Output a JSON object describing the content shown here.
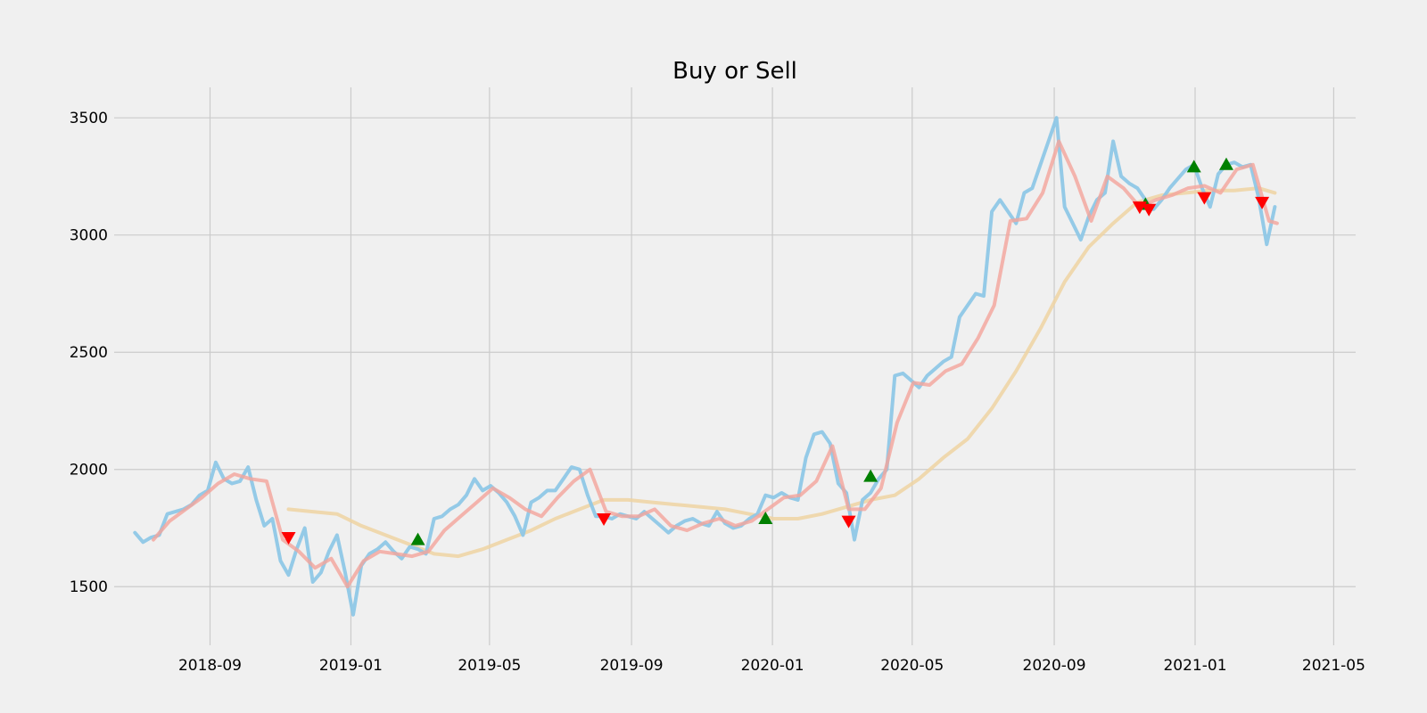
{
  "chart_data": {
    "type": "line",
    "title": "Buy or Sell",
    "xlabel": "",
    "ylabel": "",
    "x_axis_type": "date",
    "xlim": [
      "2018-06-10",
      "2021-05-20"
    ],
    "ylim": [
      1250,
      3630
    ],
    "grid": true,
    "legend": "none",
    "x_ticks": [
      "2018-09",
      "2019-01",
      "2019-05",
      "2019-09",
      "2020-01",
      "2020-05",
      "2020-09",
      "2021-01",
      "2021-05"
    ],
    "y_ticks": [
      1500,
      2000,
      2500,
      3000,
      3500
    ],
    "colors": {
      "background": "#f0f0f0",
      "grid": "#cbcbcb",
      "price": "#8ec7e6",
      "short_ma": "#f4a49b",
      "long_ma": "#efd4a2",
      "buy": "#008000",
      "sell": "#ff0000"
    },
    "series": [
      {
        "key": "price",
        "x": [
          "2018-06-28",
          "2018-07-05",
          "2018-07-12",
          "2018-07-19",
          "2018-07-26",
          "2018-08-02",
          "2018-08-09",
          "2018-08-16",
          "2018-08-23",
          "2018-08-30",
          "2018-09-06",
          "2018-09-13",
          "2018-09-20",
          "2018-09-27",
          "2018-10-04",
          "2018-10-11",
          "2018-10-18",
          "2018-10-25",
          "2018-11-01",
          "2018-11-08",
          "2018-11-15",
          "2018-11-22",
          "2018-11-29",
          "2018-12-06",
          "2018-12-13",
          "2018-12-20",
          "2018-12-27",
          "2019-01-03",
          "2019-01-10",
          "2019-01-17",
          "2019-01-24",
          "2019-01-31",
          "2019-02-07",
          "2019-02-14",
          "2019-02-21",
          "2019-02-28",
          "2019-03-07",
          "2019-03-14",
          "2019-03-21",
          "2019-03-28",
          "2019-04-04",
          "2019-04-11",
          "2019-04-18",
          "2019-04-25",
          "2019-05-02",
          "2019-05-09",
          "2019-05-16",
          "2019-05-23",
          "2019-05-30",
          "2019-06-06",
          "2019-06-13",
          "2019-06-20",
          "2019-06-27",
          "2019-07-04",
          "2019-07-11",
          "2019-07-18",
          "2019-07-25",
          "2019-08-01",
          "2019-08-08",
          "2019-08-15",
          "2019-08-22",
          "2019-08-29",
          "2019-09-05",
          "2019-09-12",
          "2019-09-19",
          "2019-09-26",
          "2019-10-03",
          "2019-10-10",
          "2019-10-17",
          "2019-10-24",
          "2019-10-31",
          "2019-11-07",
          "2019-11-14",
          "2019-11-21",
          "2019-11-28",
          "2019-12-05",
          "2019-12-12",
          "2019-12-19",
          "2019-12-26",
          "2020-01-02",
          "2020-01-09",
          "2020-01-16",
          "2020-01-23",
          "2020-01-30",
          "2020-02-06",
          "2020-02-13",
          "2020-02-20",
          "2020-02-27",
          "2020-03-05",
          "2020-03-12",
          "2020-03-19",
          "2020-03-26",
          "2020-04-02",
          "2020-04-09",
          "2020-04-16",
          "2020-04-23",
          "2020-04-30",
          "2020-05-07",
          "2020-05-14",
          "2020-05-21",
          "2020-05-28",
          "2020-06-04",
          "2020-06-11",
          "2020-06-18",
          "2020-06-25",
          "2020-07-02",
          "2020-07-09",
          "2020-07-16",
          "2020-07-23",
          "2020-07-30",
          "2020-08-06",
          "2020-08-13",
          "2020-08-20",
          "2020-08-27",
          "2020-09-03",
          "2020-09-10",
          "2020-09-17",
          "2020-09-24",
          "2020-10-01",
          "2020-10-08",
          "2020-10-15",
          "2020-10-22",
          "2020-10-29",
          "2020-11-05",
          "2020-11-12",
          "2020-11-19",
          "2020-11-26",
          "2020-12-03",
          "2020-12-10",
          "2020-12-17",
          "2020-12-24",
          "2020-12-31",
          "2021-01-07",
          "2021-01-14",
          "2021-01-21",
          "2021-01-28",
          "2021-02-04",
          "2021-02-11",
          "2021-02-18",
          "2021-02-25",
          "2021-03-04",
          "2021-03-11"
        ],
        "values": [
          1730,
          1690,
          1710,
          1720,
          1810,
          1820,
          1830,
          1850,
          1890,
          1910,
          2030,
          1960,
          1940,
          1950,
          2010,
          1870,
          1760,
          1790,
          1610,
          1550,
          1660,
          1750,
          1520,
          1560,
          1650,
          1720,
          1560,
          1380,
          1590,
          1640,
          1660,
          1690,
          1650,
          1620,
          1670,
          1660,
          1640,
          1790,
          1800,
          1830,
          1850,
          1890,
          1960,
          1910,
          1930,
          1900,
          1860,
          1800,
          1720,
          1860,
          1880,
          1910,
          1910,
          1960,
          2010,
          2000,
          1890,
          1800,
          1800,
          1790,
          1810,
          1800,
          1790,
          1820,
          1790,
          1760,
          1730,
          1760,
          1780,
          1790,
          1770,
          1760,
          1820,
          1770,
          1750,
          1760,
          1790,
          1810,
          1890,
          1880,
          1900,
          1880,
          1870,
          2050,
          2150,
          2160,
          2110,
          1940,
          1900,
          1700,
          1870,
          1900,
          1960,
          2000,
          2400,
          2410,
          2380,
          2350,
          2400,
          2430,
          2460,
          2480,
          2650,
          2700,
          2750,
          2740,
          3100,
          3150,
          3100,
          3050,
          3180,
          3200,
          3300,
          3400,
          3500,
          3120,
          3050,
          2980,
          3080,
          3150,
          3180,
          3400,
          3250,
          3220,
          3200,
          3150,
          3110,
          3150,
          3200,
          3240,
          3280,
          3300,
          3200,
          3120,
          3260,
          3300,
          3310,
          3290,
          3300,
          3160,
          2960,
          3120
        ]
      },
      {
        "key": "short_ma",
        "x": [
          "2018-07-14",
          "2018-07-28",
          "2018-08-11",
          "2018-08-25",
          "2018-09-08",
          "2018-09-22",
          "2018-10-06",
          "2018-10-20",
          "2018-11-03",
          "2018-11-17",
          "2018-12-01",
          "2018-12-15",
          "2018-12-29",
          "2019-01-12",
          "2019-01-26",
          "2019-02-09",
          "2019-02-23",
          "2019-03-09",
          "2019-03-23",
          "2019-04-06",
          "2019-04-20",
          "2019-05-04",
          "2019-05-18",
          "2019-06-01",
          "2019-06-15",
          "2019-06-29",
          "2019-07-13",
          "2019-07-27",
          "2019-08-10",
          "2019-08-24",
          "2019-09-07",
          "2019-09-21",
          "2019-10-05",
          "2019-10-19",
          "2019-11-02",
          "2019-11-16",
          "2019-11-30",
          "2019-12-14",
          "2019-12-28",
          "2020-01-11",
          "2020-01-25",
          "2020-02-08",
          "2020-02-22",
          "2020-03-07",
          "2020-03-21",
          "2020-04-04",
          "2020-04-18",
          "2020-05-02",
          "2020-05-16",
          "2020-05-30",
          "2020-06-13",
          "2020-06-27",
          "2020-07-11",
          "2020-07-25",
          "2020-08-08",
          "2020-08-22",
          "2020-09-05",
          "2020-09-19",
          "2020-10-03",
          "2020-10-17",
          "2020-10-31",
          "2020-11-14",
          "2020-11-28",
          "2020-12-12",
          "2020-12-26",
          "2021-01-09",
          "2021-01-23",
          "2021-02-06",
          "2021-02-20",
          "2021-03-06",
          "2021-03-13"
        ],
        "values": [
          1700,
          1780,
          1830,
          1880,
          1940,
          1980,
          1960,
          1950,
          1700,
          1650,
          1580,
          1620,
          1500,
          1610,
          1650,
          1640,
          1630,
          1650,
          1740,
          1800,
          1860,
          1920,
          1880,
          1830,
          1800,
          1880,
          1950,
          2000,
          1820,
          1800,
          1800,
          1830,
          1760,
          1740,
          1770,
          1790,
          1760,
          1780,
          1830,
          1880,
          1890,
          1950,
          2100,
          1830,
          1830,
          1920,
          2200,
          2370,
          2360,
          2420,
          2450,
          2560,
          2700,
          3060,
          3070,
          3180,
          3400,
          3250,
          3060,
          3250,
          3200,
          3120,
          3150,
          3170,
          3200,
          3210,
          3180,
          3280,
          3300,
          3060,
          3050
        ]
      },
      {
        "key": "long_ma",
        "x": [
          "2018-11-08",
          "2018-11-29",
          "2018-12-20",
          "2019-01-10",
          "2019-01-31",
          "2019-02-21",
          "2019-03-14",
          "2019-04-04",
          "2019-04-25",
          "2019-05-16",
          "2019-06-06",
          "2019-06-27",
          "2019-07-18",
          "2019-08-08",
          "2019-08-29",
          "2019-09-19",
          "2019-10-10",
          "2019-10-31",
          "2019-11-21",
          "2019-12-12",
          "2020-01-02",
          "2020-01-23",
          "2020-02-13",
          "2020-03-05",
          "2020-03-26",
          "2020-04-16",
          "2020-05-07",
          "2020-05-28",
          "2020-06-18",
          "2020-07-09",
          "2020-07-30",
          "2020-08-20",
          "2020-09-10",
          "2020-10-01",
          "2020-10-22",
          "2020-11-12",
          "2020-12-03",
          "2020-12-24",
          "2021-01-14",
          "2021-02-04",
          "2021-02-25",
          "2021-03-11"
        ],
        "values": [
          1830,
          1820,
          1810,
          1760,
          1720,
          1680,
          1640,
          1630,
          1660,
          1700,
          1740,
          1790,
          1830,
          1870,
          1870,
          1860,
          1850,
          1840,
          1830,
          1810,
          1790,
          1790,
          1810,
          1840,
          1870,
          1890,
          1960,
          2050,
          2130,
          2260,
          2420,
          2600,
          2800,
          2950,
          3050,
          3140,
          3170,
          3180,
          3190,
          3190,
          3200,
          3180
        ]
      }
    ],
    "buy_signals": {
      "x": [
        "2019-02-28",
        "2019-12-26",
        "2020-03-26",
        "2020-11-19",
        "2020-12-31",
        "2021-01-28"
      ],
      "values": [
        1700,
        1790,
        1970,
        3130,
        3290,
        3300
      ]
    },
    "sell_signals": {
      "x": [
        "2018-11-08",
        "2019-08-08",
        "2020-03-07",
        "2020-11-14",
        "2020-11-22",
        "2021-01-09",
        "2021-02-28"
      ],
      "values": [
        1710,
        1790,
        1780,
        3120,
        3110,
        3160,
        3140
      ]
    }
  }
}
